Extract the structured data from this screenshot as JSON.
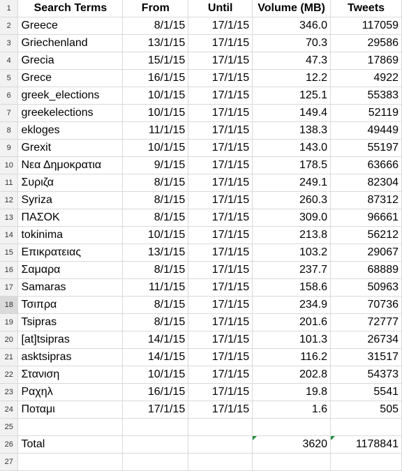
{
  "header": {
    "rownum": "1",
    "search_terms": "Search Terms",
    "from": "From",
    "until": "Until",
    "volume": "Volume (MB)",
    "tweets": "Tweets"
  },
  "rows": [
    {
      "n": "2",
      "term": "Greece",
      "from": "8/1/15",
      "until": "17/1/15",
      "volume": "346.0",
      "tweets": "117059"
    },
    {
      "n": "3",
      "term": "Griechenland",
      "from": "13/1/15",
      "until": "17/1/15",
      "volume": "70.3",
      "tweets": "29586"
    },
    {
      "n": "4",
      "term": "Grecia",
      "from": "15/1/15",
      "until": "17/1/15",
      "volume": "47.3",
      "tweets": "17869"
    },
    {
      "n": "5",
      "term": "Grece",
      "from": "16/1/15",
      "until": "17/1/15",
      "volume": "12.2",
      "tweets": "4922"
    },
    {
      "n": "6",
      "term": "greek_elections",
      "from": "10/1/15",
      "until": "17/1/15",
      "volume": "125.1",
      "tweets": "55383"
    },
    {
      "n": "7",
      "term": "greekelections",
      "from": "10/1/15",
      "until": "17/1/15",
      "volume": "149.4",
      "tweets": "52119"
    },
    {
      "n": "8",
      "term": "ekloges",
      "from": "11/1/15",
      "until": "17/1/15",
      "volume": "138.3",
      "tweets": "49449"
    },
    {
      "n": "9",
      "term": "Grexit",
      "from": "10/1/15",
      "until": "17/1/15",
      "volume": "143.0",
      "tweets": "55197"
    },
    {
      "n": "10",
      "term": "Νεα Δημοκρατια",
      "from": "9/1/15",
      "until": "17/1/15",
      "volume": "178.5",
      "tweets": "63666"
    },
    {
      "n": "11",
      "term": "Συριζα",
      "from": "8/1/15",
      "until": "17/1/15",
      "volume": "249.1",
      "tweets": "82304"
    },
    {
      "n": "12",
      "term": "Syriza",
      "from": "8/1/15",
      "until": "17/1/15",
      "volume": "260.3",
      "tweets": "87312"
    },
    {
      "n": "13",
      "term": "ΠΑΣΟΚ",
      "from": "8/1/15",
      "until": "17/1/15",
      "volume": "309.0",
      "tweets": "96661"
    },
    {
      "n": "14",
      "term": "tokinima",
      "from": "10/1/15",
      "until": "17/1/15",
      "volume": "213.8",
      "tweets": "56212"
    },
    {
      "n": "15",
      "term": "Επικρατειας",
      "from": "13/1/15",
      "until": "17/1/15",
      "volume": "103.2",
      "tweets": "29067"
    },
    {
      "n": "16",
      "term": "Σαμαρα",
      "from": "8/1/15",
      "until": "17/1/15",
      "volume": "237.7",
      "tweets": "68889"
    },
    {
      "n": "17",
      "term": "Samaras",
      "from": "11/1/15",
      "until": "17/1/15",
      "volume": "158.6",
      "tweets": "50963"
    },
    {
      "n": "18",
      "term": "Τσιπρα",
      "from": "8/1/15",
      "until": "17/1/15",
      "volume": "234.9",
      "tweets": "70736"
    },
    {
      "n": "19",
      "term": "Tsipras",
      "from": "8/1/15",
      "until": "17/1/15",
      "volume": "201.6",
      "tweets": "72777"
    },
    {
      "n": "20",
      "term": "[at]tsipras",
      "from": "14/1/15",
      "until": "17/1/15",
      "volume": "101.3",
      "tweets": "26734"
    },
    {
      "n": "21",
      "term": "asktsipras",
      "from": "14/1/15",
      "until": "17/1/15",
      "volume": "116.2",
      "tweets": "31517"
    },
    {
      "n": "22",
      "term": "Στανιση",
      "from": "10/1/15",
      "until": "17/1/15",
      "volume": "202.8",
      "tweets": "54373"
    },
    {
      "n": "23",
      "term": "Ραχηλ",
      "from": "16/1/15",
      "until": "17/1/15",
      "volume": "19.8",
      "tweets": "5541"
    },
    {
      "n": "24",
      "term": "Ποταμι",
      "from": "17/1/15",
      "until": "17/1/15",
      "volume": "1.6",
      "tweets": "505"
    },
    {
      "n": "25",
      "term": "",
      "from": "",
      "until": "",
      "volume": "",
      "tweets": ""
    }
  ],
  "total": {
    "n": "26",
    "label": "Total",
    "volume": "3620",
    "tweets": "1178841"
  },
  "trailing_row": {
    "n": "27"
  },
  "active_row": "18",
  "colors": {
    "error_indicator": "#1e8a3a",
    "grid": "#d9d9d9",
    "header_bg": "#f2f2f2"
  }
}
